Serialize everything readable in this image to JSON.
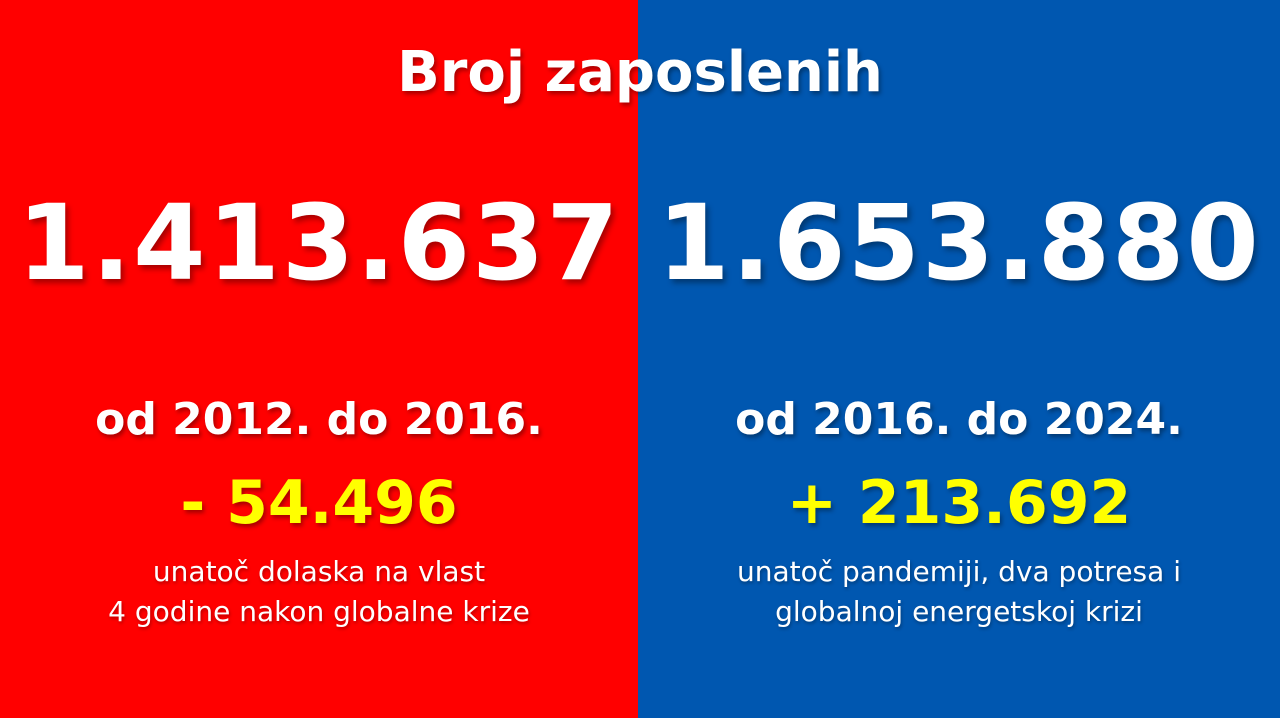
{
  "title": "Broj zaposlenih",
  "colors": {
    "left_background": "#ff0000",
    "right_background": "#0057b0",
    "text": "#ffffff",
    "delta": "#ffff00"
  },
  "left": {
    "total": "1.413.637",
    "period": "od 2012. do 2016.",
    "change": "- 54.496",
    "note_line1": "unatoč dolaska na vlast",
    "note_line2": "4 godine nakon globalne krize"
  },
  "right": {
    "total": "1.653.880",
    "period": "od 2016. do 2024.",
    "change": "+ 213.692",
    "note_line1": "unatoč pandemiji, dva potresa i",
    "note_line2": "globalnoj energetskoj krizi"
  }
}
